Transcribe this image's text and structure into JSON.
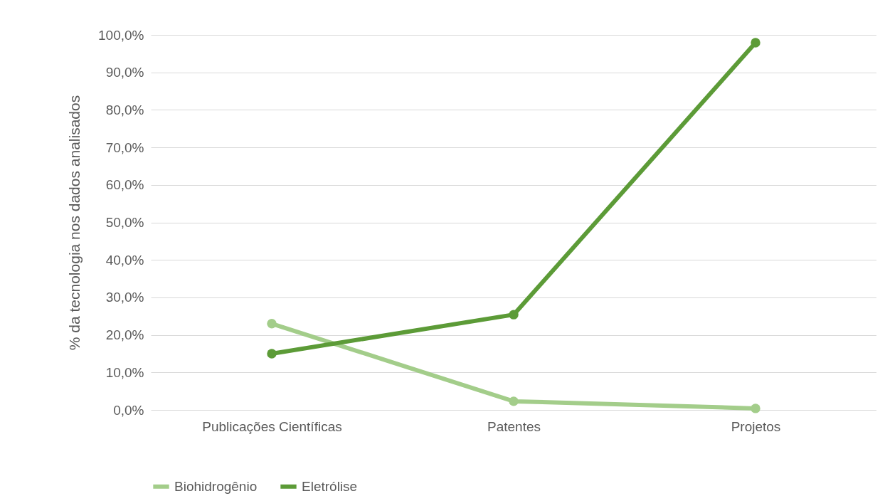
{
  "chart_data": {
    "type": "line",
    "ylabel": "% da tecnologia nos dados analisados",
    "categories": [
      "Publicações Científicas",
      "Patentes",
      "Projetos"
    ],
    "series": [
      {
        "name": "Biohidrogênio",
        "color": "#a3cd8a",
        "values": [
          23.0,
          2.3,
          0.4
        ]
      },
      {
        "name": "Eletrólise",
        "color": "#5c9b37",
        "values": [
          15.0,
          25.4,
          97.9
        ]
      }
    ],
    "ylim": [
      0,
      100
    ],
    "yticks": [
      {
        "value": 0,
        "label": "0,0%"
      },
      {
        "value": 10,
        "label": "10,0%"
      },
      {
        "value": 20,
        "label": "20,0%"
      },
      {
        "value": 30,
        "label": "30,0%"
      },
      {
        "value": 40,
        "label": "40,0%"
      },
      {
        "value": 50,
        "label": "50,0%"
      },
      {
        "value": 60,
        "label": "60,0%"
      },
      {
        "value": 70,
        "label": "70,0%"
      },
      {
        "value": 80,
        "label": "80,0%"
      },
      {
        "value": 90,
        "label": "90,0%"
      },
      {
        "value": 100,
        "label": "100,0%"
      }
    ],
    "grid": "y",
    "legend": "bottom",
    "marker": "circle",
    "line_style": "solid"
  }
}
